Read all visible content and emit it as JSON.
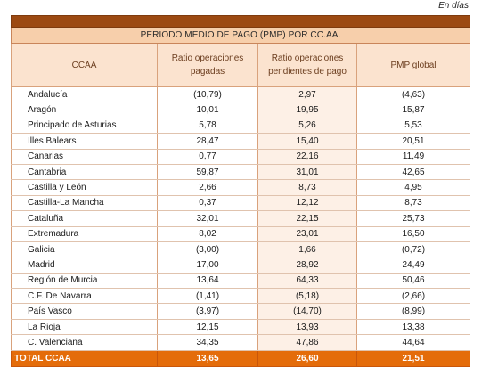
{
  "unit_note": "En días",
  "table": {
    "title": "PERIODO MEDIO DE PAGO (PMP) POR CC.AA.",
    "headers": {
      "ccaa": "CCAA",
      "ratio_pagadas": "Ratio operaciones pagadas",
      "ratio_pendientes": "Ratio operaciones pendientes de pago",
      "pmp_global": "PMP global"
    },
    "rows": [
      {
        "ccaa": "Andalucía",
        "ratio_pagadas": "(10,79)",
        "ratio_pendientes": "2,97",
        "pmp_global": "(4,63)"
      },
      {
        "ccaa": "Aragón",
        "ratio_pagadas": "10,01",
        "ratio_pendientes": "19,95",
        "pmp_global": "15,87"
      },
      {
        "ccaa": "Principado de Asturias",
        "ratio_pagadas": "5,78",
        "ratio_pendientes": "5,26",
        "pmp_global": "5,53"
      },
      {
        "ccaa": "Illes Balears",
        "ratio_pagadas": "28,47",
        "ratio_pendientes": "15,40",
        "pmp_global": "20,51"
      },
      {
        "ccaa": "Canarias",
        "ratio_pagadas": "0,77",
        "ratio_pendientes": "22,16",
        "pmp_global": "11,49"
      },
      {
        "ccaa": "Cantabria",
        "ratio_pagadas": "59,87",
        "ratio_pendientes": "31,01",
        "pmp_global": "42,65"
      },
      {
        "ccaa": "Castilla y León",
        "ratio_pagadas": "2,66",
        "ratio_pendientes": "8,73",
        "pmp_global": "4,95"
      },
      {
        "ccaa": "Castilla-La Mancha",
        "ratio_pagadas": "0,37",
        "ratio_pendientes": "12,12",
        "pmp_global": "8,73"
      },
      {
        "ccaa": "Cataluña",
        "ratio_pagadas": "32,01",
        "ratio_pendientes": "22,15",
        "pmp_global": "25,73"
      },
      {
        "ccaa": "Extremadura",
        "ratio_pagadas": "8,02",
        "ratio_pendientes": "23,01",
        "pmp_global": "16,50"
      },
      {
        "ccaa": "Galicia",
        "ratio_pagadas": "(3,00)",
        "ratio_pendientes": "1,66",
        "pmp_global": "(0,72)"
      },
      {
        "ccaa": "Madrid",
        "ratio_pagadas": "17,00",
        "ratio_pendientes": "28,92",
        "pmp_global": "24,49"
      },
      {
        "ccaa": "Región de Murcia",
        "ratio_pagadas": "13,64",
        "ratio_pendientes": "64,33",
        "pmp_global": "50,46"
      },
      {
        "ccaa": "C.F. De Navarra",
        "ratio_pagadas": "(1,41)",
        "ratio_pendientes": "(5,18)",
        "pmp_global": "(2,66)"
      },
      {
        "ccaa": "País Vasco",
        "ratio_pagadas": "(3,97)",
        "ratio_pendientes": "(14,70)",
        "pmp_global": "(8,99)"
      },
      {
        "ccaa": "La Rioja",
        "ratio_pagadas": "12,15",
        "ratio_pendientes": "13,93",
        "pmp_global": "13,38"
      },
      {
        "ccaa": "C. Valenciana",
        "ratio_pagadas": "34,35",
        "ratio_pendientes": "47,86",
        "pmp_global": "44,64"
      }
    ],
    "total": {
      "ccaa": "TOTAL CCAA",
      "ratio_pagadas": "13,65",
      "ratio_pendientes": "26,60",
      "pmp_global": "21,51"
    }
  },
  "colors": {
    "top_band": "#9c4a12",
    "title_bg": "#f7cfab",
    "header_bg": "#fbe3cf",
    "header_text": "#6b3d1e",
    "total_bg": "#e46c0a"
  }
}
